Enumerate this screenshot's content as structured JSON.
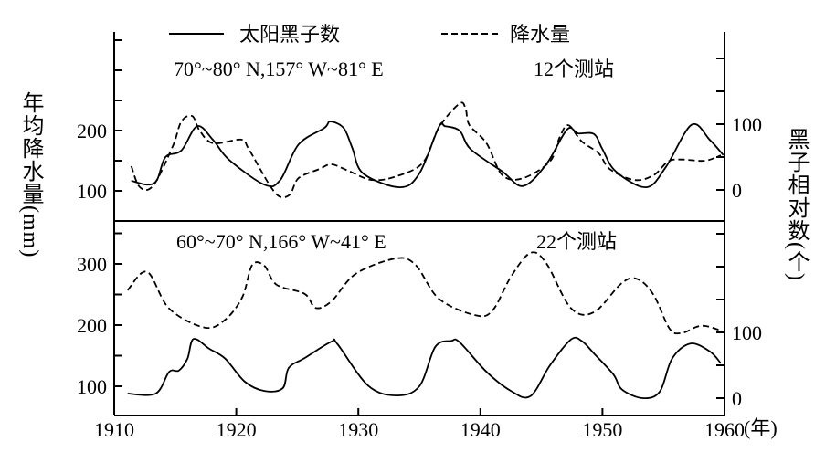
{
  "chart_data": [
    {
      "type": "line",
      "panel": "top",
      "subtitle": "70°~80° N,157° W~81° E",
      "stations": "12个测站",
      "left_ticks": [
        100,
        200
      ],
      "right_ticks": [
        0,
        100
      ],
      "series": [
        {
          "name": "太阳黑子数",
          "axis": "right",
          "style": "solid",
          "x": [
            1911.4,
            1912.7,
            1913.5,
            1914.2,
            1915.5,
            1916.8,
            1918.1,
            1919.4,
            1922.3,
            1923.6,
            1925.1,
            1927.2,
            1927.7,
            1928.8,
            1929.5,
            1930.4,
            1933.4,
            1935.0,
            1936.6,
            1937.1,
            1938.3,
            1939.2,
            1941.8,
            1943.5,
            1945.4,
            1947.1,
            1948.0,
            1949.3,
            1950.0,
            1951.1,
            1953.6,
            1955.2,
            1957.3,
            1958.8,
            1959.9
          ],
          "y": [
            14,
            8,
            15,
            50,
            60,
            97,
            76,
            46,
            8,
            15,
            69,
            94,
            104,
            94,
            64,
            25,
            4,
            25,
            96,
            97,
            90,
            62,
            28,
            6,
            39,
            92,
            86,
            85,
            62,
            28,
            4,
            35,
            99,
            76,
            53
          ]
        },
        {
          "name": "降水量",
          "axis": "left",
          "style": "dashed",
          "x": [
            1911.4,
            1912.1,
            1913.2,
            1914.8,
            1915.5,
            1916.4,
            1917.0,
            1918.1,
            1920.4,
            1921.0,
            1922.6,
            1923.5,
            1924.4,
            1925.1,
            1926.8,
            1927.8,
            1929.2,
            1931.1,
            1933.1,
            1935.3,
            1936.6,
            1938.3,
            1938.8,
            1939.1,
            1940.5,
            1941.8,
            1943.5,
            1945.7,
            1946.5,
            1947.2,
            1948.3,
            1949.7,
            1950.6,
            1952.6,
            1954.2,
            1955.4,
            1956.5,
            1958.4,
            1959.7
          ],
          "y": [
            141,
            106,
            109,
            174,
            215,
            224,
            200,
            179,
            185,
            170,
            114,
            91,
            94,
            121,
            136,
            144,
            133,
            118,
            124,
            147,
            205,
            245,
            235,
            209,
            179,
            126,
            121,
            149,
            189,
            209,
            182,
            162,
            136,
            118,
            126,
            149,
            152,
            150,
            159
          ]
        }
      ]
    },
    {
      "type": "line",
      "panel": "bottom",
      "subtitle": "60°~70° N,166° W~41° E",
      "stations": "22个测站",
      "left_ticks": [
        100,
        200,
        300
      ],
      "right_ticks": [
        0,
        100
      ],
      "series": [
        {
          "name": "太阳黑子数",
          "axis": "right",
          "style": "solid",
          "x": [
            1911.1,
            1913.4,
            1914.5,
            1915.3,
            1916.0,
            1916.5,
            1917.8,
            1919.1,
            1920.7,
            1922.3,
            1923.8,
            1924.3,
            1925.6,
            1927.8,
            1928.3,
            1930.8,
            1933.1,
            1935.0,
            1936.3,
            1937.6,
            1938.3,
            1940.5,
            1942.5,
            1944.1,
            1945.7,
            1947.4,
            1948.3,
            1949.3,
            1950.9,
            1951.6,
            1953.3,
            1954.7,
            1955.7,
            1957.2,
            1958.8,
            1959.7
          ],
          "y": [
            7,
            7,
            40,
            42,
            60,
            90,
            75,
            60,
            25,
            11,
            15,
            46,
            61,
            86,
            82,
            19,
            4,
            18,
            78,
            87,
            85,
            40,
            11,
            3,
            50,
            89,
            87,
            68,
            36,
            13,
            0,
            10,
            60,
            83,
            71,
            53
          ]
        },
        {
          "name": "降水量",
          "axis": "left",
          "style": "dashed",
          "x": [
            1911.1,
            1912.7,
            1914.5,
            1917.4,
            1919.1,
            1920.5,
            1921.3,
            1922.3,
            1923.3,
            1925.6,
            1926.5,
            1927.8,
            1929.8,
            1933.1,
            1934.7,
            1936.6,
            1939.6,
            1941.0,
            1942.5,
            1944.1,
            1945.4,
            1947.4,
            1949.3,
            1951.6,
            1952.9,
            1954.2,
            1955.5,
            1956.5,
            1958.1,
            1959.7
          ],
          "y": [
            257,
            287,
            227,
            196,
            209,
            246,
            298,
            297,
            266,
            251,
            228,
            239,
            284,
            309,
            298,
            243,
            216,
            224,
            279,
            318,
            301,
            228,
            221,
            269,
            275,
            249,
            194,
            187,
            199,
            191
          ]
        }
      ]
    }
  ],
  "legend": {
    "solid": "太阳黑子数",
    "dashed": "降水量",
    "placement": "top"
  },
  "x_ticks": [
    1910,
    1920,
    1930,
    1940,
    1950,
    1960
  ],
  "x_unit": "(年)",
  "left_axis_label": "年均降水量(mm)",
  "right_axis_label": "黑子相对数(个)",
  "xlim": [
    1910,
    1960
  ]
}
